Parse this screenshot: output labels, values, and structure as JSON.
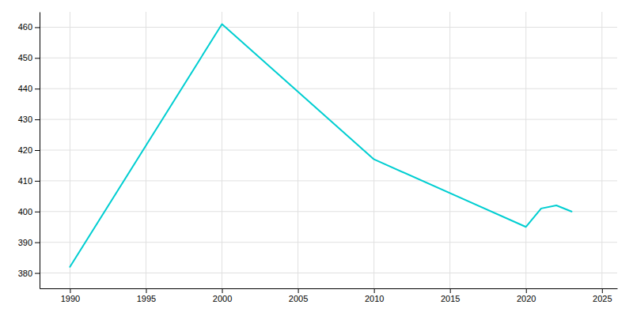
{
  "chart_data": {
    "type": "line",
    "x": [
      1990,
      2000,
      2010,
      2020,
      2021,
      2022,
      2023
    ],
    "values": [
      382,
      461,
      417,
      395,
      401,
      402,
      400
    ],
    "color": "#00CED1",
    "xlim": [
      1988,
      2026
    ],
    "ylim": [
      375,
      465
    ],
    "xticks": [
      1990,
      1995,
      2000,
      2005,
      2010,
      2015,
      2020,
      2025
    ],
    "yticks": [
      380,
      390,
      400,
      410,
      420,
      430,
      440,
      450,
      460
    ],
    "grid": true
  }
}
